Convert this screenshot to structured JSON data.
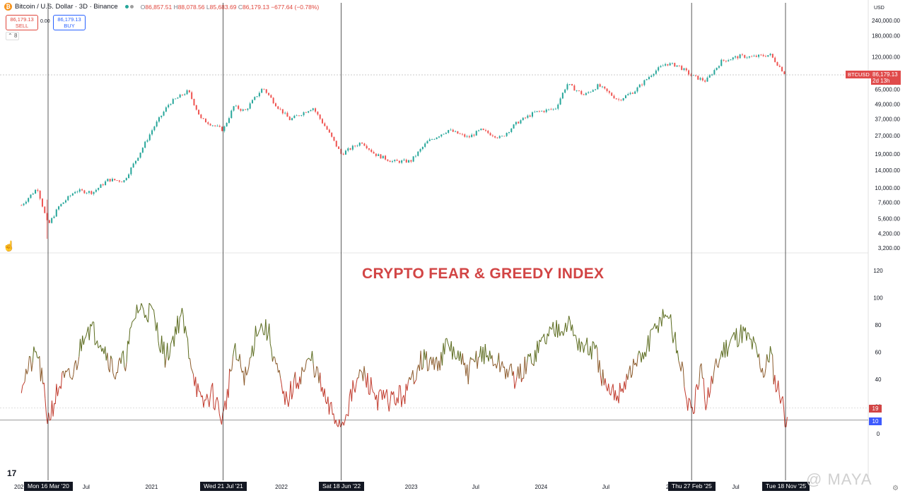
{
  "header": {
    "symbol": "Bitcoin / U.S. Dollar · 3D · Binance",
    "ohlc": {
      "o_label": "O",
      "o": "86,857.51",
      "h_label": "H",
      "h": "88,078.56",
      "l_label": "L",
      "l": "85,683.69",
      "c_label": "C",
      "c": "86,179.13",
      "change": "−677.64 (−0.78%)"
    },
    "sell_price": "86,179.13",
    "sell_label": "SELL",
    "buy_price": "86,179.13",
    "buy_label": "BUY",
    "spread": "0.00",
    "indicator_count": "8",
    "currency": "USD"
  },
  "price_tag": {
    "symbol": "BTCUSD",
    "price": "86,179.13",
    "countdown": "2d 13h"
  },
  "fg_tags": {
    "current": "19",
    "reference": "10"
  },
  "annotation": {
    "title": "CRYPTO FEAR & GREEDY INDEX"
  },
  "watermark": "@ MAYA",
  "tradingview_logo": "17",
  "date_boxes": [
    {
      "label": "Mon 16 Mar '20",
      "date": "2020-03-16"
    },
    {
      "label": "Wed 21 Jul '21",
      "date": "2021-07-21"
    },
    {
      "label": "Sat 18 Jun '22",
      "date": "2022-06-18"
    },
    {
      "label": "Thu 27 Feb '25",
      "date": "2025-02-27"
    },
    {
      "label": "Tue 18 Nov '25",
      "date": "2025-11-18"
    }
  ],
  "colors": {
    "bull": "#26a69a",
    "bear": "#ef5350",
    "fear": "#c0392b",
    "greed": "#5b6b1e",
    "annotation": "#d24545",
    "tag_blue": "#3d5afe"
  },
  "chart_data": [
    {
      "type": "candlestick-line",
      "series": [
        {
          "name": "BTCUSD",
          "scale": "log"
        }
      ],
      "x": [
        "2020-01-01",
        "2020-02-15",
        "2020-03-16",
        "2020-04-15",
        "2020-06-01",
        "2020-07-20",
        "2020-09-01",
        "2020-10-15",
        "2020-11-25",
        "2021-01-05",
        "2021-02-20",
        "2021-04-14",
        "2021-05-20",
        "2021-07-21",
        "2021-08-20",
        "2021-09-20",
        "2021-11-10",
        "2021-12-20",
        "2022-01-25",
        "2022-03-30",
        "2022-05-10",
        "2022-06-18",
        "2022-08-15",
        "2022-09-20",
        "2022-11-10",
        "2022-12-30",
        "2023-02-15",
        "2023-04-15",
        "2023-06-10",
        "2023-07-15",
        "2023-09-10",
        "2023-10-25",
        "2023-12-15",
        "2024-02-10",
        "2024-03-14",
        "2024-05-01",
        "2024-06-10",
        "2024-08-05",
        "2024-09-20",
        "2024-11-12",
        "2024-12-17",
        "2025-01-20",
        "2025-02-27",
        "2025-04-08",
        "2025-05-22",
        "2025-07-14",
        "2025-08-14",
        "2025-10-06",
        "2025-10-20",
        "2025-11-18"
      ],
      "values": [
        7200,
        10000,
        4900,
        7000,
        9500,
        9200,
        11700,
        11400,
        18500,
        31000,
        50000,
        63000,
        37000,
        30000,
        47000,
        43000,
        67000,
        47000,
        36500,
        46000,
        30000,
        19000,
        24000,
        19000,
        16500,
        16600,
        24000,
        30000,
        26000,
        30000,
        25800,
        34500,
        42000,
        45000,
        72000,
        58000,
        70000,
        53000,
        63000,
        90000,
        106000,
        102000,
        84000,
        76000,
        111000,
        122000,
        120000,
        125000,
        111000,
        86179
      ],
      "yticks": [
        "240,000.00",
        "180,000.00",
        "120,000.00",
        "86,179.13",
        "65,000.00",
        "49,000.00",
        "37,000.00",
        "27,000.00",
        "19,000.00",
        "14,000.00",
        "10,000.00",
        "7,600.00",
        "5,600.00",
        "4,200.00",
        "3,200.00"
      ]
    },
    {
      "type": "line",
      "series": [
        {
          "name": ""
        }
      ],
      "ylim": [
        0,
        120
      ],
      "yticks": [
        "120",
        "100",
        "80",
        "60",
        "40",
        "20",
        "0"
      ],
      "x": [
        "2020-01-01",
        "2020-02-15",
        "2020-03-16",
        "2020-04-20",
        "2020-05-25",
        "2020-07-01",
        "2020-08-10",
        "2020-09-20",
        "2020-10-20",
        "2020-11-20",
        "2021-01-01",
        "2021-02-10",
        "2021-03-25",
        "2021-05-20",
        "2021-06-20",
        "2021-07-21",
        "2021-08-20",
        "2021-09-25",
        "2021-10-25",
        "2021-11-25",
        "2022-01-10",
        "2022-02-15",
        "2022-03-28",
        "2022-05-10",
        "2022-06-18",
        "2022-07-20",
        "2022-08-15",
        "2022-10-01",
        "2022-11-10",
        "2022-12-20",
        "2023-01-25",
        "2023-03-10",
        "2023-04-15",
        "2023-06-10",
        "2023-07-15",
        "2023-09-10",
        "2023-10-25",
        "2023-12-05",
        "2024-01-10",
        "2024-02-20",
        "2024-03-14",
        "2024-04-20",
        "2024-06-01",
        "2024-07-05",
        "2024-08-05",
        "2024-09-06",
        "2024-10-20",
        "2024-11-25",
        "2024-12-20",
        "2025-01-20",
        "2025-02-27",
        "2025-03-25",
        "2025-04-08",
        "2025-05-22",
        "2025-06-20",
        "2025-07-20",
        "2025-08-20",
        "2025-09-20",
        "2025-10-06",
        "2025-10-20",
        "2025-11-05",
        "2025-11-18",
        "2025-11-25"
      ],
      "values": [
        38,
        60,
        10,
        38,
        42,
        80,
        70,
        45,
        55,
        92,
        90,
        55,
        88,
        20,
        30,
        10,
        60,
        40,
        80,
        75,
        22,
        40,
        55,
        20,
        6,
        30,
        45,
        25,
        25,
        30,
        55,
        50,
        65,
        45,
        60,
        50,
        40,
        55,
        70,
        80,
        82,
        65,
        60,
        28,
        30,
        45,
        60,
        82,
        90,
        60,
        10,
        45,
        25,
        60,
        70,
        75,
        65,
        45,
        62,
        38,
        30,
        10,
        19
      ]
    }
  ]
}
